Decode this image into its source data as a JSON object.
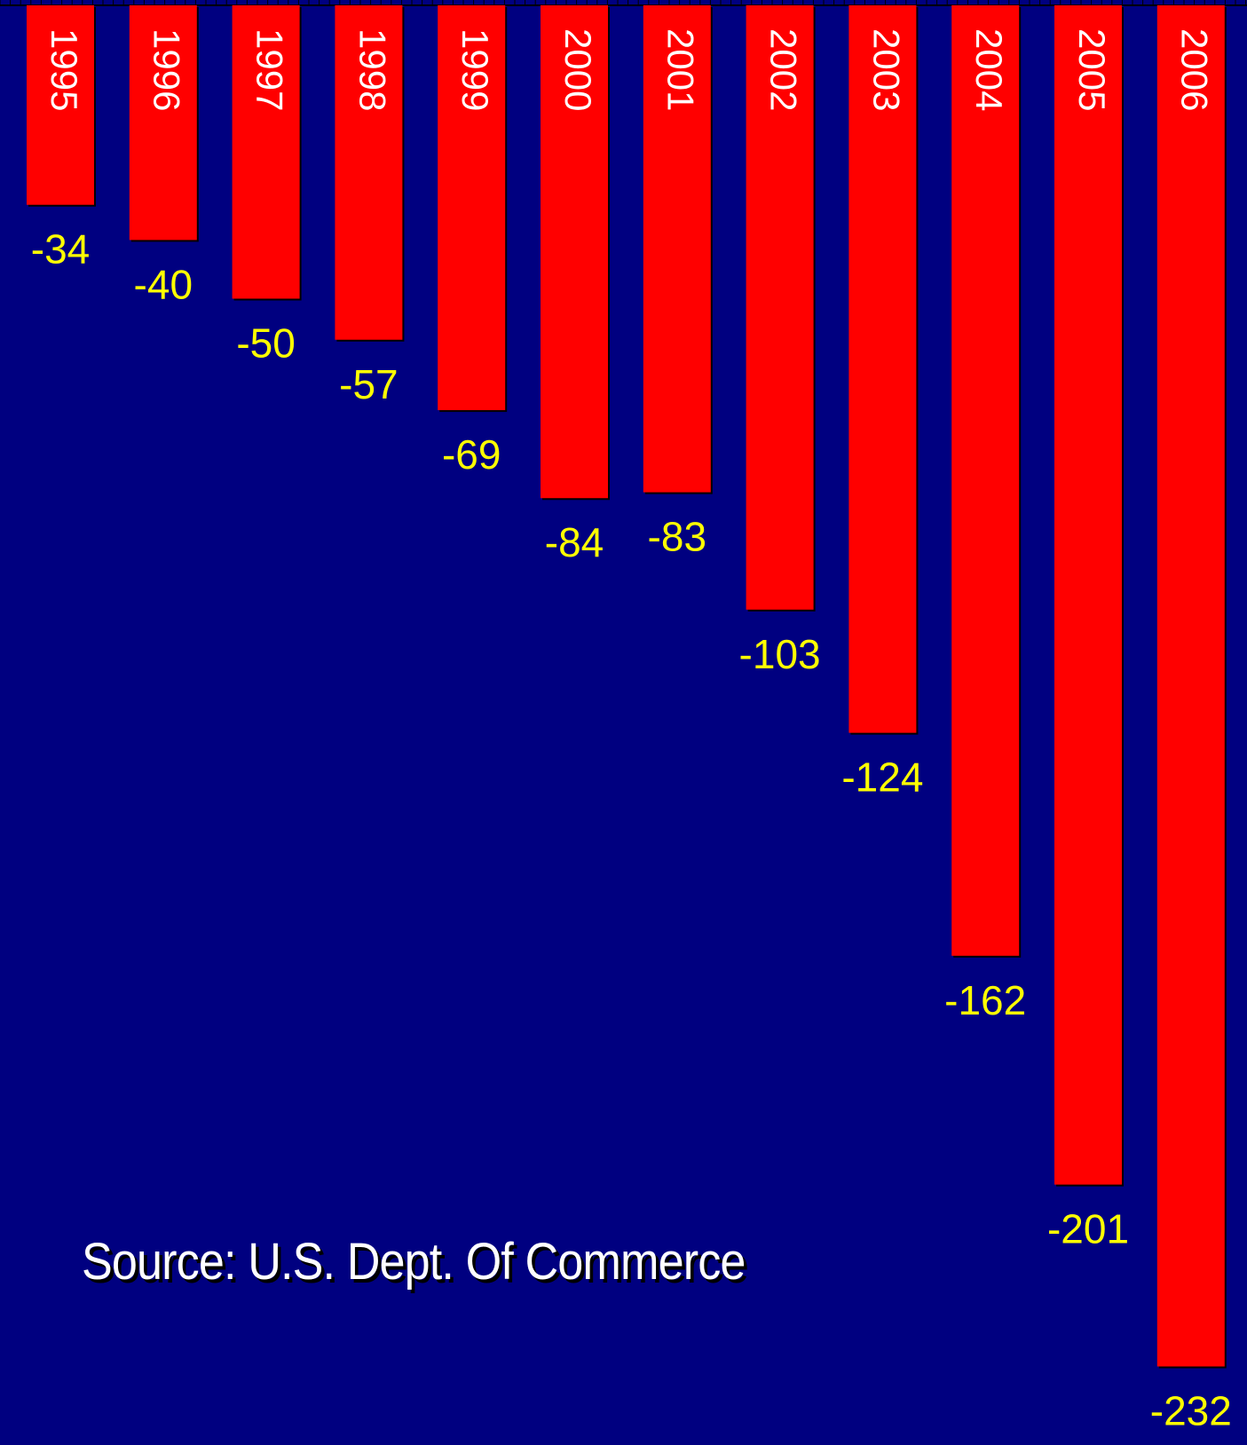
{
  "chart_data": {
    "type": "bar",
    "categories": [
      "1995",
      "1996",
      "1997",
      "1998",
      "1999",
      "2000",
      "2001",
      "2002",
      "2003",
      "2004",
      "2005",
      "2006"
    ],
    "values": [
      -34,
      -40,
      -50,
      -57,
      -69,
      -84,
      -83,
      -103,
      -124,
      -162,
      -201,
      -232
    ],
    "value_labels": [
      "-34",
      "-40",
      "-50",
      "-57",
      "-69",
      "-84",
      "-83",
      "-103",
      "-124",
      "-162",
      "-201",
      "-232"
    ],
    "ylim": [
      -232,
      0
    ],
    "grid": false,
    "orientation": "hanging-from-top"
  },
  "source": "Source:  U.S. Dept. Of Commerce",
  "colors": {
    "background": "#000080",
    "bar": "#ff0000",
    "value_label": "#ffff00",
    "category_label": "#ffffff",
    "source_text": "#ffffff"
  }
}
